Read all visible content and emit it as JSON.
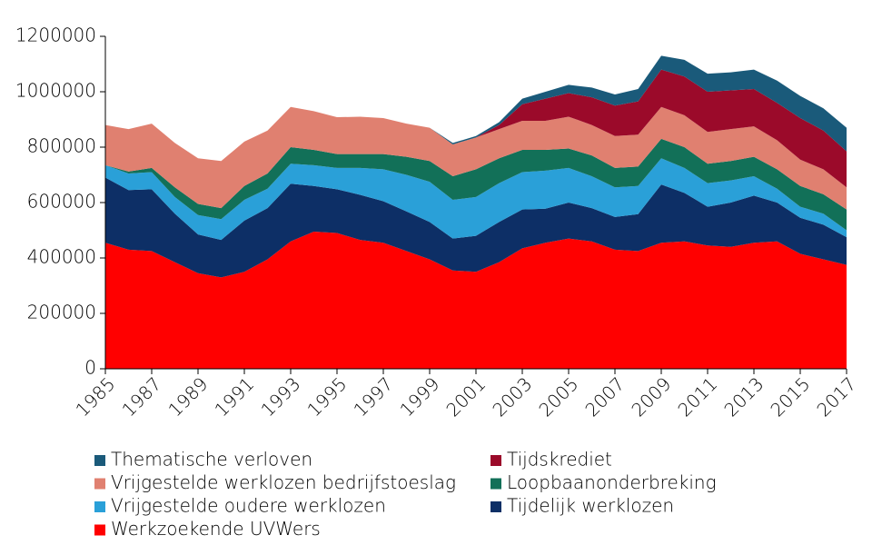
{
  "chart_data": {
    "type": "stacked_area",
    "x": [
      1985,
      1986,
      1987,
      1988,
      1989,
      1990,
      1991,
      1992,
      1993,
      1994,
      1995,
      1996,
      1997,
      1998,
      1999,
      2000,
      2001,
      2002,
      2003,
      2004,
      2005,
      2006,
      2007,
      2008,
      2009,
      2010,
      2011,
      2012,
      2013,
      2014,
      2015,
      2016,
      2017
    ],
    "xlim": [
      1985,
      2017
    ],
    "xticks": [
      1985,
      1987,
      1989,
      1991,
      1993,
      1995,
      1997,
      1999,
      2001,
      2003,
      2005,
      2007,
      2009,
      2011,
      2013,
      2015,
      2017
    ],
    "ylim": [
      0,
      1200000
    ],
    "yticks": [
      0,
      200000,
      400000,
      600000,
      800000,
      1000000,
      1200000
    ],
    "grid": false,
    "legend": "bottom",
    "series": [
      {
        "name": "Werkzoekende UVWers",
        "color": "#ff0000",
        "values": [
          455000,
          430000,
          425000,
          385000,
          345000,
          330000,
          350000,
          395000,
          460000,
          495000,
          490000,
          465000,
          455000,
          425000,
          395000,
          355000,
          350000,
          385000,
          435000,
          455000,
          470000,
          460000,
          430000,
          425000,
          455000,
          460000,
          445000,
          440000,
          455000,
          460000,
          415000,
          395000,
          375000
        ]
      },
      {
        "name": "Tijdelijk werklozen",
        "color": "#0d2f66",
        "values": [
          235000,
          215000,
          223000,
          175000,
          140000,
          135000,
          185000,
          185000,
          208000,
          165000,
          158000,
          163000,
          150000,
          143000,
          135000,
          115000,
          130000,
          145000,
          140000,
          123000,
          130000,
          120000,
          118000,
          133000,
          210000,
          175000,
          140000,
          160000,
          170000,
          140000,
          130000,
          125000,
          100000
        ]
      },
      {
        "name": "Vrijgestelde oudere werklozen",
        "color": "#2aa0d8",
        "values": [
          45000,
          60000,
          62000,
          60000,
          70000,
          75000,
          75000,
          70000,
          72000,
          75000,
          77000,
          97000,
          115000,
          132000,
          145000,
          140000,
          140000,
          140000,
          135000,
          137000,
          125000,
          115000,
          107000,
          102000,
          95000,
          90000,
          85000,
          80000,
          70000,
          50000,
          40000,
          40000,
          25000
        ]
      },
      {
        "name": "Loopbaanonderbreking",
        "color": "#127058",
        "values": [
          0,
          7000,
          15000,
          35000,
          40000,
          40000,
          50000,
          55000,
          60000,
          55000,
          50000,
          50000,
          55000,
          65000,
          75000,
          85000,
          100000,
          90000,
          80000,
          75000,
          70000,
          75000,
          70000,
          70000,
          70000,
          75000,
          70000,
          70000,
          70000,
          70000,
          75000,
          70000,
          75000
        ]
      },
      {
        "name": "Vrijgestelde werklozen bedrijfstoeslag",
        "color": "#e08070",
        "values": [
          145000,
          153000,
          160000,
          160000,
          165000,
          170000,
          160000,
          155000,
          145000,
          140000,
          133000,
          135000,
          130000,
          120000,
          120000,
          115000,
          115000,
          105000,
          105000,
          105000,
          115000,
          110000,
          115000,
          115000,
          115000,
          115000,
          115000,
          115000,
          110000,
          105000,
          95000,
          90000,
          80000
        ]
      },
      {
        "name": "Tijdskrediet",
        "color": "#9b0a2a",
        "values": [
          0,
          0,
          0,
          0,
          0,
          0,
          0,
          0,
          0,
          0,
          0,
          0,
          0,
          0,
          0,
          0,
          0,
          15000,
          60000,
          80000,
          85000,
          100000,
          110000,
          120000,
          135000,
          140000,
          145000,
          140000,
          135000,
          135000,
          150000,
          140000,
          130000
        ]
      },
      {
        "name": "Thematische verloven",
        "color": "#1a5a7a",
        "values": [
          0,
          0,
          0,
          0,
          0,
          0,
          0,
          0,
          0,
          0,
          0,
          0,
          0,
          0,
          0,
          5000,
          5000,
          10000,
          20000,
          25000,
          30000,
          35000,
          40000,
          45000,
          50000,
          60000,
          65000,
          65000,
          70000,
          80000,
          80000,
          80000,
          85000
        ]
      }
    ]
  }
}
